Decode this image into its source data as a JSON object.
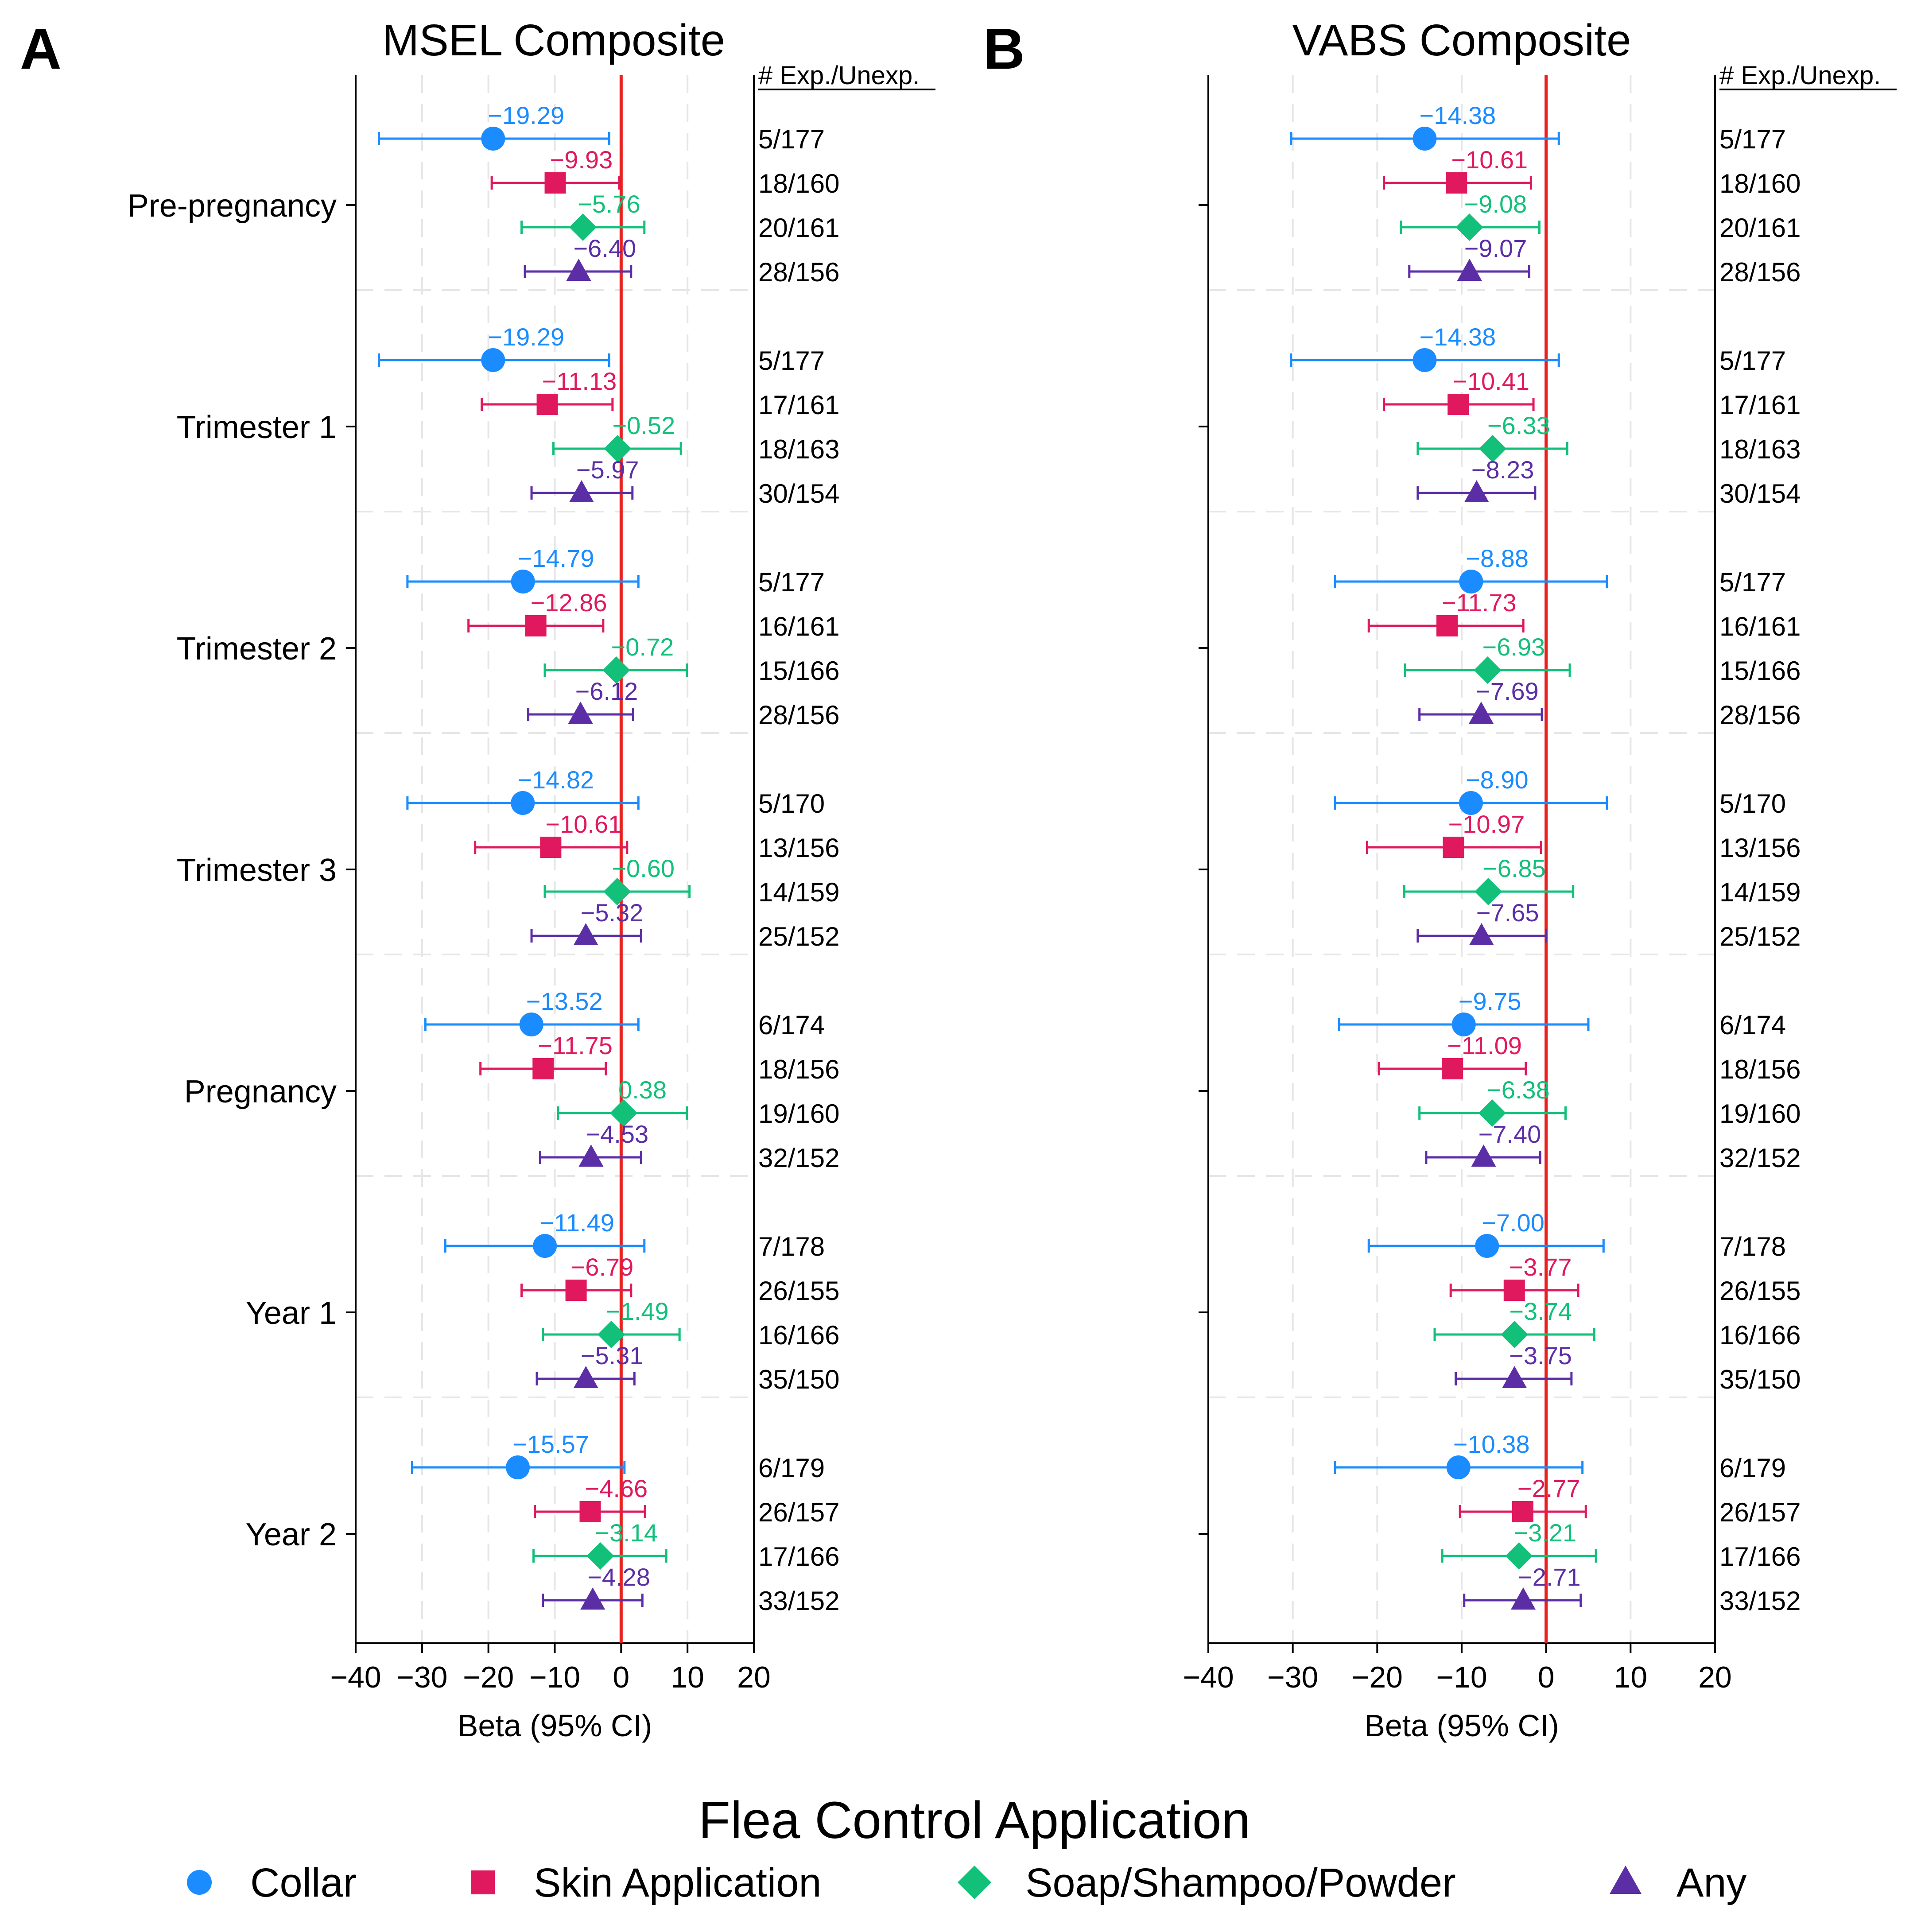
{
  "figure": {
    "legend_title": "Flea Control Application",
    "panel_letters": [
      "A",
      "B"
    ]
  },
  "colors": {
    "Collar": "#1a8cff",
    "Skin Application": "#e0195e",
    "Soap/Shampoo/Powder": "#12c07a",
    "Any": "#5b2ea6",
    "reference_line": "#e8201e",
    "axis": "#000000",
    "grid": "#e6e6e6"
  },
  "chart_data": [
    {
      "type": "forest",
      "panel": "A",
      "title": "MSEL Composite",
      "xlabel": "Beta (95% CI)",
      "counts_header": "# Exp./Unexp.",
      "xlim": [
        -40,
        20
      ],
      "xticks": [
        -40,
        -30,
        -20,
        -10,
        0,
        10,
        20
      ],
      "xtick_labels": [
        "−40",
        "−30",
        "−20",
        "−10",
        "0",
        "10",
        "20"
      ],
      "reference_x": 0,
      "groups": [
        "Pre-pregnancy",
        "Trimester 1",
        "Trimester 2",
        "Trimester 3",
        "Pregnancy",
        "Year 1",
        "Year 2"
      ],
      "series": [
        {
          "name": "Collar",
          "marker": "circle",
          "values": [
            -19.29,
            -19.29,
            -14.79,
            -14.82,
            -13.52,
            -11.49,
            -15.57
          ],
          "labels": [
            "−19.29",
            "−19.29",
            "−14.79",
            "−14.82",
            "−13.52",
            "−11.49",
            "−15.57"
          ],
          "lower": [
            -36.5,
            -36.5,
            -32.2,
            -32.2,
            -29.5,
            -26.5,
            -31.5
          ],
          "upper": [
            -1.8,
            -1.8,
            2.6,
            2.6,
            2.6,
            3.5,
            0.5
          ],
          "counts": [
            "5/177",
            "5/177",
            "5/177",
            "5/170",
            "6/174",
            "7/178",
            "6/179"
          ]
        },
        {
          "name": "Skin Application",
          "marker": "square",
          "values": [
            -9.93,
            -11.13,
            -12.86,
            -10.61,
            -11.75,
            -6.79,
            -4.66
          ],
          "labels": [
            "−9.93",
            "−11.13",
            "−12.86",
            "−10.61",
            "−11.75",
            "−6.79",
            "−4.66"
          ],
          "lower": [
            -19.5,
            -21.0,
            -23.0,
            -22.0,
            -21.2,
            -15.0,
            -13.0
          ],
          "upper": [
            -0.3,
            -1.3,
            -2.7,
            0.9,
            -2.3,
            1.5,
            3.6
          ],
          "counts": [
            "18/160",
            "17/161",
            "16/161",
            "13/156",
            "18/156",
            "26/155",
            "26/157"
          ]
        },
        {
          "name": "Soap/Shampoo/Powder",
          "marker": "diamond",
          "values": [
            -5.76,
            -0.52,
            -0.72,
            -0.6,
            0.38,
            -1.49,
            -3.14
          ],
          "labels": [
            "−5.76",
            "−0.52",
            "−0.72",
            "−0.60",
            "0.38",
            "−1.49",
            "−3.14"
          ],
          "lower": [
            -15.0,
            -10.2,
            -11.5,
            -11.5,
            -9.5,
            -11.8,
            -13.2
          ],
          "upper": [
            3.5,
            9.0,
            9.9,
            10.3,
            9.9,
            8.8,
            6.8
          ],
          "counts": [
            "20/161",
            "18/163",
            "15/166",
            "14/159",
            "19/160",
            "16/166",
            "17/166"
          ]
        },
        {
          "name": "Any",
          "marker": "triangle",
          "values": [
            -6.4,
            -5.97,
            -6.12,
            -5.32,
            -4.53,
            -5.31,
            -4.28
          ],
          "labels": [
            "−6.40",
            "−5.97",
            "−6.12",
            "−5.32",
            "−4.53",
            "−5.31",
            "−4.28"
          ],
          "lower": [
            -14.5,
            -13.5,
            -14.0,
            -13.5,
            -12.2,
            -12.7,
            -11.8
          ],
          "upper": [
            1.5,
            1.7,
            1.8,
            3.0,
            3.0,
            2.0,
            3.2
          ],
          "counts": [
            "28/156",
            "30/154",
            "28/156",
            "25/152",
            "32/152",
            "35/150",
            "33/152"
          ]
        }
      ]
    },
    {
      "type": "forest",
      "panel": "B",
      "title": "VABS Composite",
      "xlabel": "Beta (95% CI)",
      "counts_header": "# Exp./Unexp.",
      "xlim": [
        -40,
        20
      ],
      "xticks": [
        -40,
        -30,
        -20,
        -10,
        0,
        10,
        20
      ],
      "xtick_labels": [
        "−40",
        "−30",
        "−20",
        "−10",
        "0",
        "10",
        "20"
      ],
      "reference_x": 0,
      "groups": [
        "Pre-pregnancy",
        "Trimester 1",
        "Trimester 2",
        "Trimester 3",
        "Pregnancy",
        "Year 1",
        "Year 2"
      ],
      "series": [
        {
          "name": "Collar",
          "marker": "circle",
          "values": [
            -14.38,
            -14.38,
            -8.88,
            -8.9,
            -9.75,
            -7.0,
            -10.38
          ],
          "labels": [
            "−14.38",
            "−14.38",
            "−8.88",
            "−8.90",
            "−9.75",
            "−7.00",
            "−10.38"
          ],
          "lower": [
            -30.2,
            -30.2,
            -25.0,
            -25.0,
            -24.5,
            -21.0,
            -25.0
          ],
          "upper": [
            1.5,
            1.5,
            7.2,
            7.2,
            5.0,
            6.8,
            4.3
          ],
          "counts": [
            "5/177",
            "5/177",
            "5/177",
            "5/170",
            "6/174",
            "7/178",
            "6/179"
          ]
        },
        {
          "name": "Skin Application",
          "marker": "square",
          "values": [
            -10.61,
            -10.41,
            -11.73,
            -10.97,
            -11.09,
            -3.77,
            -2.77
          ],
          "labels": [
            "−10.61",
            "−10.41",
            "−11.73",
            "−10.97",
            "−11.09",
            "−3.77",
            "−2.77"
          ],
          "lower": [
            -19.2,
            -19.2,
            -21.0,
            -21.2,
            -19.8,
            -11.3,
            -10.2
          ],
          "upper": [
            -1.8,
            -1.5,
            -2.7,
            -0.6,
            -2.4,
            3.8,
            4.7
          ],
          "counts": [
            "18/160",
            "17/161",
            "16/161",
            "13/156",
            "18/156",
            "26/155",
            "26/157"
          ]
        },
        {
          "name": "Soap/Shampoo/Powder",
          "marker": "diamond",
          "values": [
            -9.08,
            -6.33,
            -6.93,
            -6.85,
            -6.38,
            -3.74,
            -3.21
          ],
          "labels": [
            "−9.08",
            "−6.33",
            "−6.93",
            "−6.85",
            "−6.38",
            "−3.74",
            "−3.21"
          ],
          "lower": [
            -17.2,
            -15.2,
            -16.7,
            -16.8,
            -15.0,
            -13.2,
            -12.3
          ],
          "upper": [
            -0.8,
            2.5,
            2.8,
            3.2,
            2.3,
            5.7,
            5.9
          ],
          "counts": [
            "20/161",
            "18/163",
            "15/166",
            "14/159",
            "19/160",
            "16/166",
            "17/166"
          ]
        },
        {
          "name": "Any",
          "marker": "triangle",
          "values": [
            -9.07,
            -8.23,
            -7.69,
            -7.65,
            -7.4,
            -3.75,
            -2.71
          ],
          "labels": [
            "−9.07",
            "−8.23",
            "−7.69",
            "−7.65",
            "−7.40",
            "−3.75",
            "−2.71"
          ],
          "lower": [
            -16.2,
            -15.2,
            -15.0,
            -15.2,
            -14.2,
            -10.7,
            -9.7
          ],
          "upper": [
            -2.0,
            -1.3,
            -0.5,
            0.0,
            -0.7,
            3.0,
            4.1
          ],
          "counts": [
            "28/156",
            "30/154",
            "28/156",
            "25/152",
            "32/152",
            "35/150",
            "33/152"
          ]
        }
      ]
    }
  ]
}
